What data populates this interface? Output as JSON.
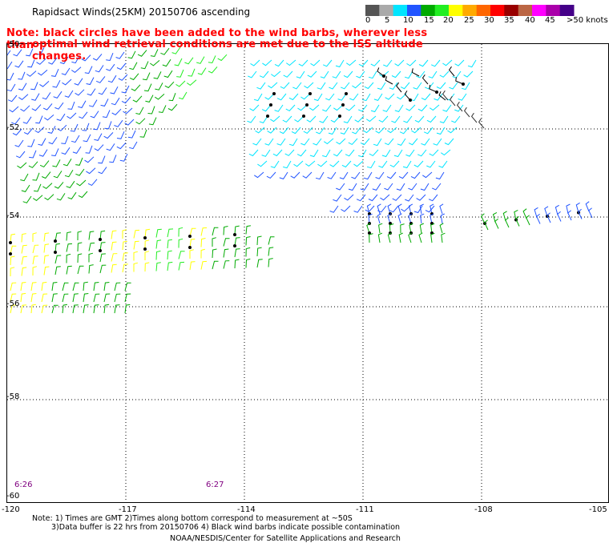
{
  "header": {
    "title": "Rapidsact Winds(25KM) 20150706 ascending",
    "note_line1": "Note: black circles have been added to the wind barbs, wherever less than",
    "note_line2": "optimal wind retrieval conditions are met due to the ISS altitude changes."
  },
  "colorbar": {
    "labels": [
      "0",
      "5",
      "10",
      "15",
      "20",
      "25",
      "30",
      "35",
      "40",
      "45",
      ">50 knots"
    ],
    "colors": [
      "#555555",
      "#aaaaaa",
      "#00e5ff",
      "#2255ff",
      "#00aa00",
      "#22ee22",
      "#ffff00",
      "#ffaa00",
      "#ff6600",
      "#ff0000",
      "#990000",
      "#bb6644",
      "#ff00ff",
      "#aa00aa",
      "#440088"
    ]
  },
  "axes": {
    "lat_labels": [
      "-50",
      "-52",
      "-54",
      "-56",
      "-58",
      "-60"
    ],
    "lon_labels": [
      "-120",
      "-117",
      "-114",
      "-111",
      "-108",
      "-105"
    ]
  },
  "time_labels": [
    "6:26",
    "6:27"
  ],
  "footer": {
    "line1": "Note: 1) Times are GMT 2)Times along bottom correspond to measurement at ~50S",
    "line2": "3)Data buffer is 22 hrs from 20150706 4) Black wind barbs indicate possible contamination",
    "line3": "NOAA/NESDIS/Center for Satellite Applications and Research"
  }
}
